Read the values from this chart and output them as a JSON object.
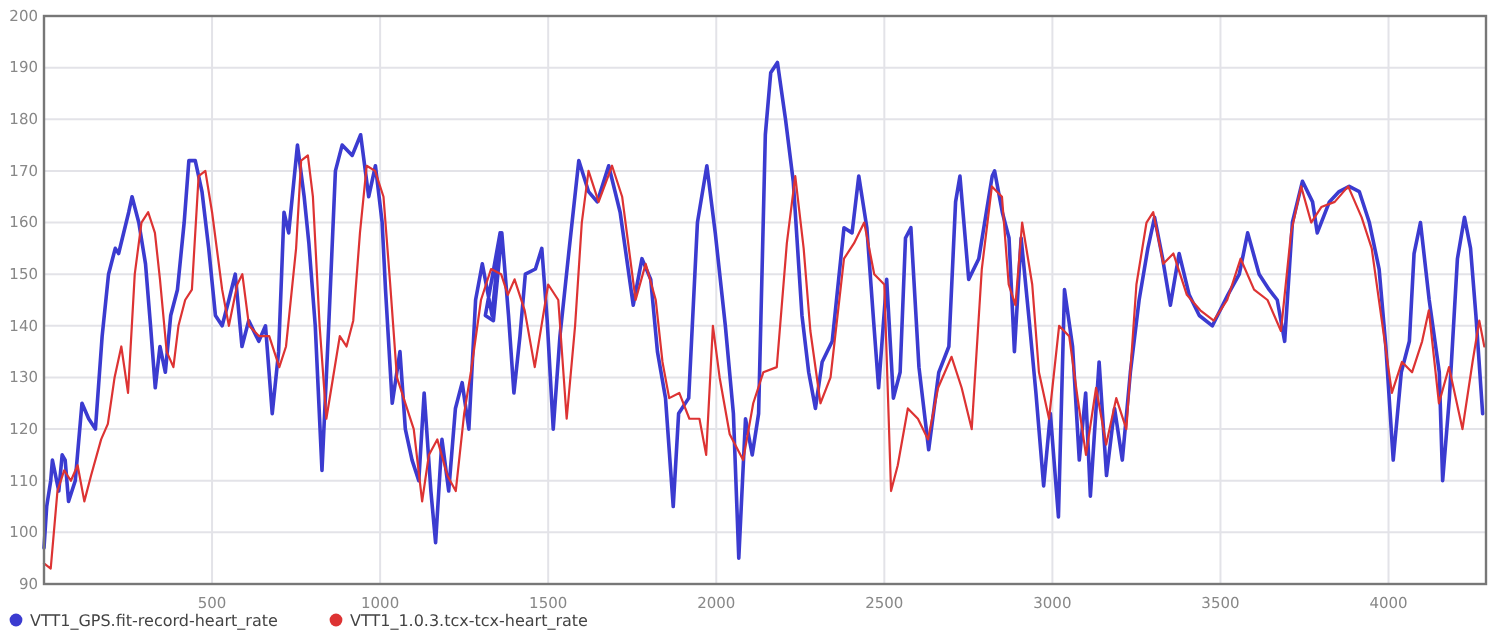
{
  "chart_data": {
    "type": "line",
    "xlim": [
      0,
      4290
    ],
    "ylim": [
      90,
      200
    ],
    "xticks": [
      500,
      1000,
      1500,
      2000,
      2500,
      3000,
      3500,
      4000
    ],
    "yticks": [
      90,
      100,
      110,
      120,
      130,
      140,
      150,
      160,
      170,
      180,
      190,
      200
    ],
    "grid": true,
    "legend": "bottom left",
    "marker": "none",
    "line_style": "solid",
    "series": [
      {
        "name": "VTT1_GPS.fit-record-heart_rate",
        "color": "#3b3bd0",
        "x": [
          0,
          8,
          20,
          25,
          44,
          54,
          63,
          73,
          93,
          113,
          133,
          153,
          173,
          192,
          212,
          222,
          252,
          262,
          282,
          302,
          317,
          331,
          345,
          361,
          377,
          397,
          417,
          431,
          450,
          470,
          490,
          510,
          530,
          550,
          569,
          589,
          609,
          639,
          659,
          679,
          698,
          714,
          728,
          754,
          774,
          788,
          807,
          827,
          847,
          867,
          887,
          917,
          942,
          966,
          986,
          1006,
          1016,
          1036,
          1059,
          1075,
          1095,
          1115,
          1131,
          1151,
          1165,
          1184,
          1204,
          1224,
          1244,
          1264,
          1284,
          1304,
          1333,
          1357,
          1313,
          1337,
          1362,
          1382,
          1398,
          1416,
          1432,
          1462,
          1481,
          1497,
          1515,
          1535,
          1561,
          1591,
          1620,
          1646,
          1680,
          1714,
          1753,
          1779,
          1805,
          1825,
          1849,
          1872,
          1888,
          1918,
          1944,
          1972,
          1997,
          2027,
          2051,
          2067,
          2087,
          2107,
          2126,
          2146,
          2162,
          2182,
          2206,
          2229,
          2255,
          2275,
          2295,
          2315,
          2345,
          2380,
          2404,
          2424,
          2448,
          2468,
          2483,
          2507,
          2527,
          2547,
          2563,
          2579,
          2603,
          2632,
          2662,
          2692,
          2712,
          2725,
          2751,
          2781,
          2821,
          2828,
          2851,
          2871,
          2887,
          2907,
          2931,
          2951,
          2974,
          2994,
          3018,
          3036,
          3060,
          3080,
          3099,
          3113,
          3139,
          3161,
          3185,
          3208,
          3232,
          3258,
          3284,
          3304,
          3328,
          3351,
          3377,
          3407,
          3437,
          3476,
          3522,
          3556,
          3581,
          3615,
          3645,
          3669,
          3691,
          3714,
          3744,
          3774,
          3788,
          3824,
          3853,
          3883,
          3913,
          3943,
          3972,
          3992,
          4014,
          4038,
          4062,
          4076,
          4095,
          4121,
          4151,
          4161,
          4181,
          4205,
          4226,
          4244,
          4260,
          4280
        ],
        "values": [
          97,
          105,
          110,
          114,
          108,
          115,
          114,
          106,
          110,
          125,
          122,
          120,
          138,
          150,
          155,
          154,
          162,
          165,
          160,
          152,
          140,
          128,
          136,
          131,
          142,
          147,
          160,
          172,
          172,
          166,
          155,
          142,
          140,
          145,
          150,
          136,
          141,
          137,
          140,
          123,
          135,
          162,
          158,
          175,
          165,
          156,
          140,
          112,
          140,
          170,
          175,
          173,
          177,
          165,
          171,
          160,
          147,
          125,
          135,
          120,
          114,
          110,
          127,
          108,
          98,
          118,
          108,
          124,
          129,
          120,
          145,
          152,
          142,
          158,
          142,
          141,
          158,
          142,
          127,
          138,
          150,
          151,
          155,
          141,
          120,
          138,
          154,
          172,
          166,
          164,
          171,
          162,
          144,
          153,
          149,
          135,
          126,
          105,
          123,
          126,
          160,
          171,
          158,
          140,
          123,
          95,
          122,
          115,
          123,
          177,
          189,
          191,
          180,
          168,
          142,
          131,
          124,
          133,
          137,
          159,
          158,
          169,
          159,
          141,
          128,
          149,
          126,
          131,
          157,
          159,
          132,
          116,
          131,
          136,
          164,
          169,
          149,
          153,
          169,
          170,
          162,
          157,
          135,
          157,
          141,
          127,
          109,
          123,
          103,
          147,
          136,
          114,
          127,
          107,
          133,
          111,
          124,
          114,
          131,
          145,
          155,
          161,
          153,
          144,
          154,
          146,
          142,
          140,
          146,
          150,
          158,
          150,
          147,
          145,
          137,
          160,
          168,
          164,
          158,
          164,
          166,
          167,
          166,
          160,
          151,
          136,
          114,
          131,
          137,
          154,
          160,
          145,
          131,
          110,
          126,
          153,
          161,
          155,
          142,
          123
        ]
      },
      {
        "name": "VTT1_1.0.3.tcx-tcx-heart_rate",
        "color": "#dd3333",
        "x": [
          0,
          20,
          40,
          60,
          80,
          100,
          120,
          140,
          170,
          190,
          210,
          230,
          250,
          270,
          290,
          310,
          330,
          345,
          365,
          385,
          400,
          420,
          440,
          460,
          480,
          500,
          530,
          550,
          575,
          590,
          610,
          640,
          670,
          700,
          720,
          750,
          765,
          785,
          800,
          820,
          840,
          860,
          880,
          900,
          920,
          940,
          960,
          985,
          1010,
          1030,
          1050,
          1070,
          1100,
          1125,
          1145,
          1170,
          1200,
          1225,
          1250,
          1270,
          1300,
          1330,
          1360,
          1380,
          1400,
          1430,
          1460,
          1480,
          1500,
          1530,
          1555,
          1580,
          1600,
          1620,
          1650,
          1690,
          1720,
          1760,
          1790,
          1820,
          1840,
          1860,
          1890,
          1920,
          1950,
          1970,
          1990,
          2010,
          2040,
          2080,
          2110,
          2140,
          2180,
          2210,
          2235,
          2260,
          2280,
          2310,
          2340,
          2380,
          2410,
          2440,
          2470,
          2500,
          2520,
          2540,
          2570,
          2600,
          2630,
          2660,
          2700,
          2730,
          2760,
          2790,
          2820,
          2850,
          2870,
          2890,
          2910,
          2940,
          2960,
          2990,
          3020,
          3050,
          3075,
          3100,
          3130,
          3160,
          3190,
          3220,
          3250,
          3280,
          3300,
          3330,
          3360,
          3400,
          3440,
          3480,
          3520,
          3560,
          3600,
          3640,
          3680,
          3710,
          3740,
          3770,
          3800,
          3840,
          3880,
          3920,
          3950,
          3980,
          4010,
          4040,
          4070,
          4100,
          4120,
          4150,
          4180,
          4220,
          4250,
          4270,
          4285
        ],
        "values": [
          94,
          93,
          108,
          112,
          110,
          113,
          106,
          111,
          118,
          121,
          130,
          136,
          127,
          150,
          160,
          162,
          158,
          149,
          135,
          132,
          140,
          145,
          147,
          169,
          170,
          162,
          147,
          140,
          148,
          150,
          140,
          138,
          138,
          132,
          136,
          155,
          172,
          173,
          165,
          140,
          122,
          130,
          138,
          136,
          141,
          158,
          171,
          170,
          165,
          148,
          130,
          126,
          120,
          106,
          115,
          118,
          111,
          108,
          123,
          131,
          145,
          151,
          150,
          146,
          149,
          143,
          132,
          140,
          148,
          145,
          122,
          140,
          160,
          170,
          164,
          171,
          165,
          145,
          152,
          145,
          133,
          126,
          127,
          122,
          122,
          115,
          140,
          130,
          119,
          114,
          125,
          131,
          132,
          156,
          169,
          155,
          139,
          125,
          130,
          153,
          156,
          160,
          150,
          148,
          108,
          113,
          124,
          122,
          118,
          128,
          134,
          128,
          120,
          151,
          167,
          165,
          148,
          144,
          160,
          148,
          131,
          122,
          140,
          138,
          126,
          115,
          128,
          117,
          126,
          120,
          148,
          160,
          162,
          152,
          154,
          146,
          143,
          141,
          145,
          153,
          147,
          145,
          139,
          158,
          167,
          160,
          163,
          164,
          167,
          161,
          155,
          141,
          127,
          133,
          131,
          137,
          143,
          125,
          132,
          120,
          133,
          141,
          136
        ]
      }
    ]
  }
}
